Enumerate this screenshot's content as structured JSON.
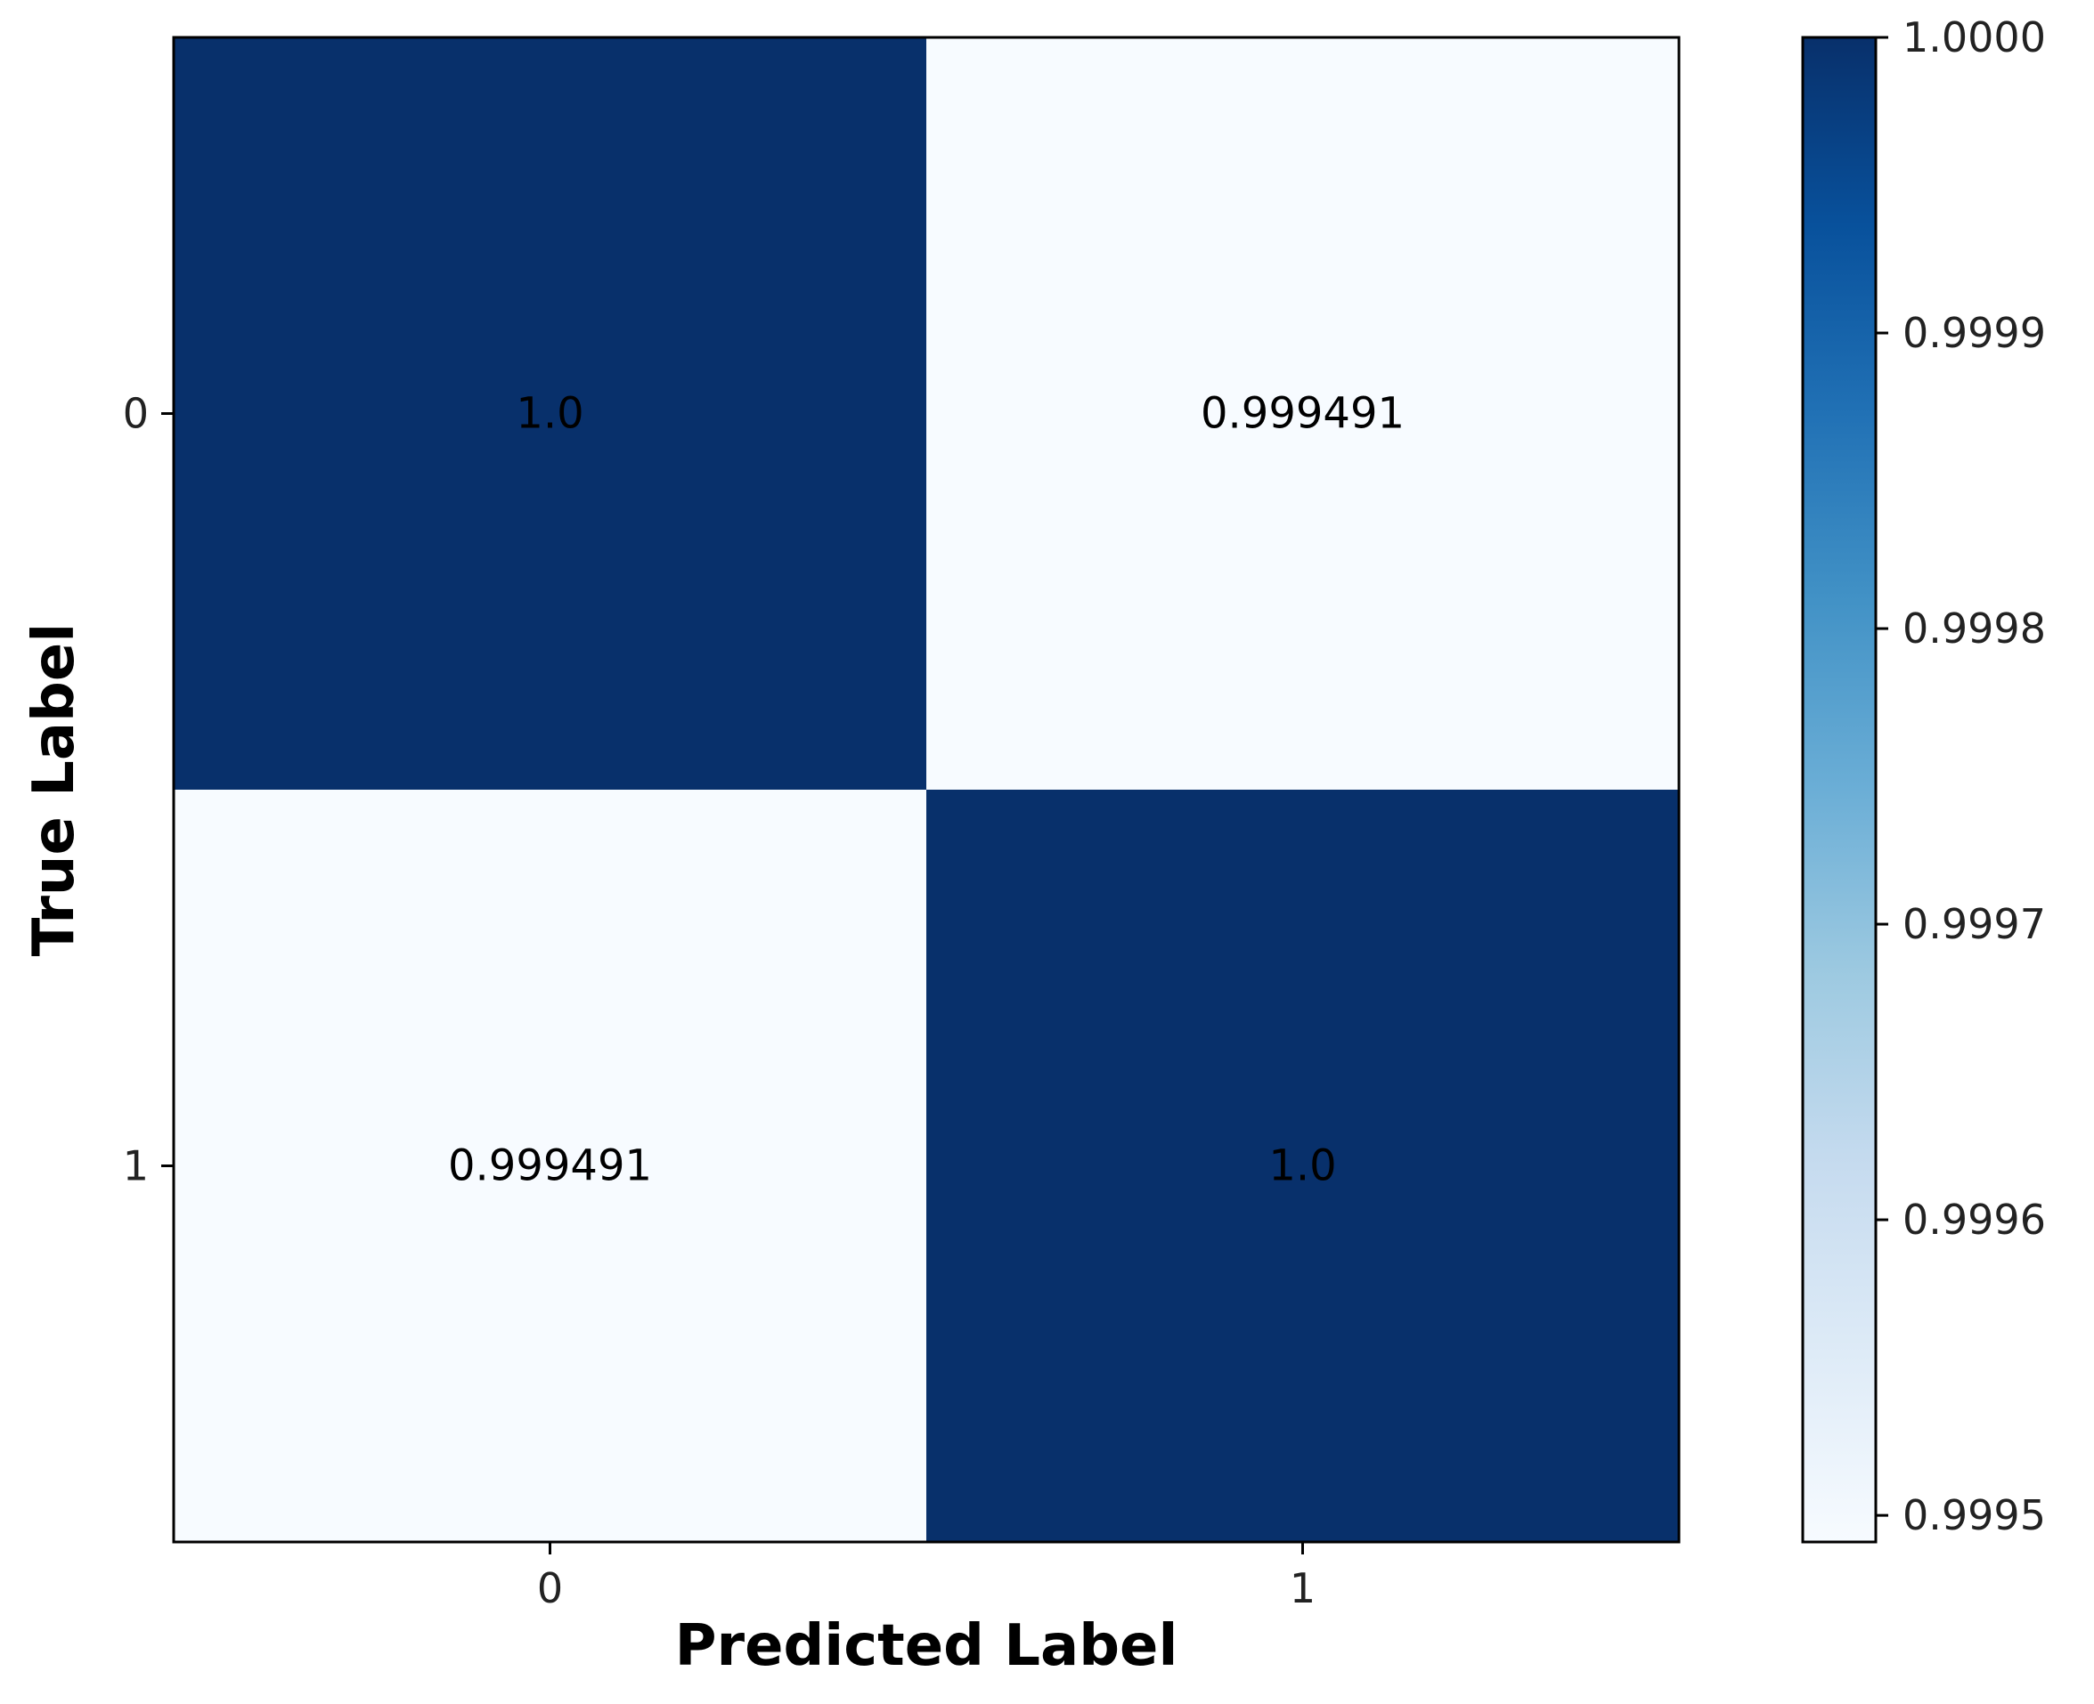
{
  "chart_data": {
    "type": "heatmap",
    "title": "",
    "xlabel": "Predicted Label",
    "ylabel": "True Label",
    "x_categories": [
      "0",
      "1"
    ],
    "y_categories": [
      "0",
      "1"
    ],
    "values": [
      [
        1.0,
        0.999491
      ],
      [
        0.999491,
        1.0
      ]
    ],
    "cell_labels": [
      [
        "1.0",
        "0.999491"
      ],
      [
        "0.999491",
        "1.0"
      ]
    ],
    "colorbar": {
      "range": [
        0.999491,
        1.0
      ],
      "ticks": [
        1.0,
        0.9999,
        0.9998,
        0.9997,
        0.9996,
        0.9995
      ],
      "tick_labels": [
        "1.0000",
        "0.9999",
        "0.9998",
        "0.9997",
        "0.9996",
        "0.9995"
      ],
      "colormap": "Blues",
      "colors": [
        "#f7fbff",
        "#deebf7",
        "#c6dbef",
        "#9ecae1",
        "#6baed6",
        "#4292c6",
        "#2171b5",
        "#08519c",
        "#08306b"
      ]
    },
    "grid": false
  }
}
